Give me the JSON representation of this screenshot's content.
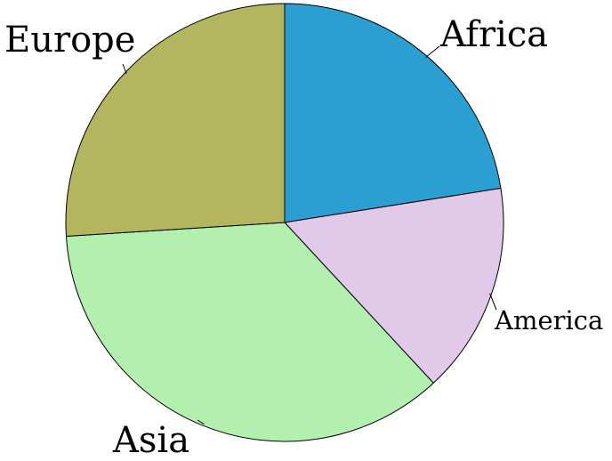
{
  "chart_data": {
    "type": "pie",
    "title": "",
    "legend": "none",
    "start_angle_deg": 90,
    "direction": "clockwise",
    "slices": [
      {
        "label": "Africa",
        "value": 22.5,
        "color": "#2b9fd1"
      },
      {
        "label": "America",
        "value": 15.6,
        "color": "#e1c9ea"
      },
      {
        "label": "Asia",
        "value": 35.9,
        "color": "#b3f0b0"
      },
      {
        "label": "Europe",
        "value": 26.0,
        "color": "#b4b55f"
      }
    ]
  }
}
